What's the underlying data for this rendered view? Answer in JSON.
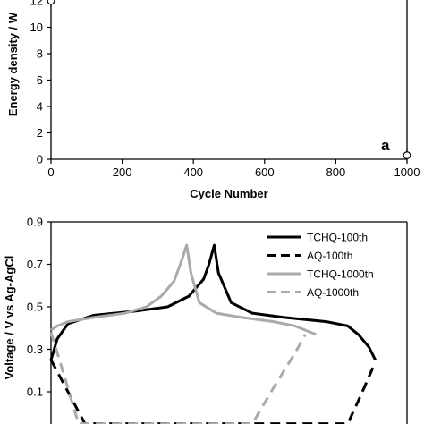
{
  "chart_data": [
    {
      "type": "scatter",
      "panel_label": "a",
      "xlabel": "Cycle Number",
      "ylabel": "Energy density / W",
      "xlim": [
        0,
        1000
      ],
      "ylim": [
        0,
        12
      ],
      "x_ticks": [
        "0",
        "200",
        "400",
        "600",
        "800",
        "1000"
      ],
      "y_ticks": [
        "0",
        "2",
        "4",
        "6",
        "8",
        "10",
        "12"
      ],
      "grid": false,
      "series": [
        {
          "points": [
            [
              0,
              12
            ],
            [
              0,
              13
            ]
          ],
          "marker": "open-circle",
          "color": "#000000"
        },
        {
          "points": [
            [
              1000,
              0.3
            ]
          ],
          "marker": "open-circle",
          "color": "#000000"
        }
      ]
    },
    {
      "type": "line",
      "xlabel": "",
      "ylabel": "Voltage / V vs Ag-AgCl",
      "ylim": [
        0,
        0.9
      ],
      "y_ticks": [
        "0.1",
        "0.3",
        "0.5",
        "0.7",
        "0.9"
      ],
      "grid": false,
      "legend_position": "top-right",
      "series": [
        {
          "name": "TCHQ-100th",
          "color": "#000000",
          "dash": "solid",
          "points": [
            [
              0,
              0.25
            ],
            [
              0.03,
              0.35
            ],
            [
              0.08,
              0.42
            ],
            [
              0.2,
              0.46
            ],
            [
              0.4,
              0.48
            ],
            [
              0.55,
              0.5
            ],
            [
              0.65,
              0.55
            ],
            [
              0.72,
              0.63
            ],
            [
              0.745,
              0.7
            ],
            [
              0.77,
              0.79
            ],
            [
              0.79,
              0.66
            ],
            [
              0.85,
              0.52
            ],
            [
              0.95,
              0.47
            ],
            [
              1.1,
              0.45
            ],
            [
              1.3,
              0.43
            ],
            [
              1.4,
              0.41
            ],
            [
              1.45,
              0.37
            ],
            [
              1.5,
              0.31
            ],
            [
              1.53,
              0.25
            ]
          ]
        },
        {
          "name": "AQ-100th",
          "color": "#000000",
          "dash": "dashed",
          "points": [
            [
              0,
              0.25
            ],
            [
              0.08,
              0.1
            ],
            [
              0.16,
              -0.05
            ],
            [
              1.4,
              -0.05
            ],
            [
              1.46,
              0.08
            ],
            [
              1.53,
              0.24
            ]
          ]
        },
        {
          "name": "TCHQ-1000th",
          "color": "#aaaaaa",
          "dash": "solid",
          "points": [
            [
              0,
              0.39
            ],
            [
              0.03,
              0.41
            ],
            [
              0.08,
              0.43
            ],
            [
              0.2,
              0.45
            ],
            [
              0.35,
              0.47
            ],
            [
              0.45,
              0.5
            ],
            [
              0.52,
              0.55
            ],
            [
              0.58,
              0.62
            ],
            [
              0.61,
              0.7
            ],
            [
              0.64,
              0.79
            ],
            [
              0.66,
              0.66
            ],
            [
              0.7,
              0.52
            ],
            [
              0.78,
              0.47
            ],
            [
              0.9,
              0.45
            ],
            [
              1.05,
              0.43
            ],
            [
              1.15,
              0.41
            ],
            [
              1.2,
              0.39
            ],
            [
              1.25,
              0.37
            ]
          ]
        },
        {
          "name": "AQ-1000th",
          "color": "#aaaaaa",
          "dash": "dashed",
          "points": [
            [
              0,
              0.38
            ],
            [
              0.04,
              0.25
            ],
            [
              0.1,
              0.05
            ],
            [
              0.13,
              -0.05
            ],
            [
              0.95,
              -0.05
            ],
            [
              1.05,
              0.12
            ],
            [
              1.15,
              0.28
            ],
            [
              1.2,
              0.37
            ]
          ]
        }
      ]
    }
  ]
}
